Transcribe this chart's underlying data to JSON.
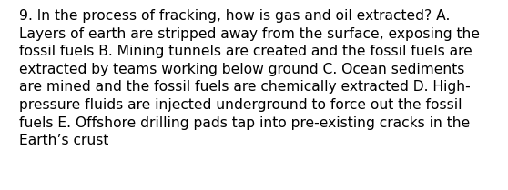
{
  "lines": [
    "9. In the process of fracking, how is gas and oil extracted? A.",
    "Layers of earth are stripped away from the surface, exposing the",
    "fossil fuels B. Mining tunnels are created and the fossil fuels are",
    "extracted by teams working below ground C. Ocean sediments",
    "are mined and the fossil fuels are chemically extracted D. High-",
    "pressure fluids are injected underground to force out the fossil",
    "fuels E. Offshore drilling pads tap into pre-existing cracks in the",
    "Earth’s crust"
  ],
  "background_color": "#ffffff",
  "text_color": "#000000",
  "font_size": 11.2,
  "font_family": "DejaVu Sans",
  "fig_width": 5.58,
  "fig_height": 2.09,
  "dpi": 100
}
